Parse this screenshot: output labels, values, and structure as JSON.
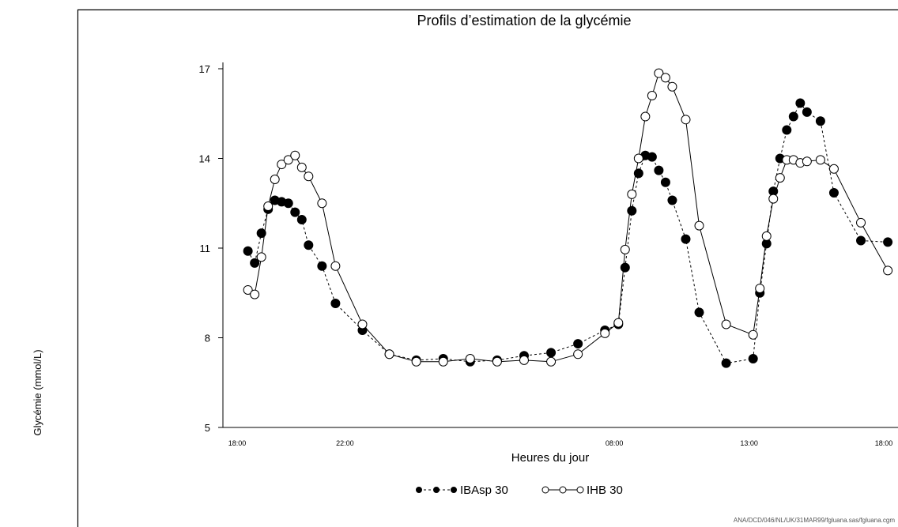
{
  "chart_data": {
    "type": "line",
    "title": "Profils d’estimation de la glycémie",
    "xlabel": "Heures du jour",
    "ylabel": "Glycémie (mmol/L)",
    "x_unit": "hours (clock time, 18:00 to 18:00 next day)",
    "xlim": [
      18,
      42
    ],
    "ylim": [
      5,
      17
    ],
    "x_ticks": [
      {
        "value": 18,
        "label": "18:00"
      },
      {
        "value": 22,
        "label": "22:00"
      },
      {
        "value": 32,
        "label": "08:00"
      },
      {
        "value": 37,
        "label": "13:00"
      },
      {
        "value": 42,
        "label": "18:00"
      }
    ],
    "y_ticks": [
      {
        "value": 5,
        "label": "5"
      },
      {
        "value": 8,
        "label": "8"
      },
      {
        "value": 11,
        "label": "11"
      },
      {
        "value": 14,
        "label": "14"
      },
      {
        "value": 17,
        "label": "17"
      }
    ],
    "grid": false,
    "legend_position": "bottom",
    "footnote": "ANA/DCD/046/NL/UK/31MAR99/fgluana.sas/fgluana.cgm",
    "series": [
      {
        "name": "IBAsp 30",
        "marker": "filled-circle",
        "line_style": "dashed",
        "color": "#000000",
        "x": [
          18.4,
          18.65,
          18.9,
          19.15,
          19.4,
          19.65,
          19.9,
          20.15,
          20.4,
          20.65,
          21.15,
          21.65,
          22.65,
          23.65,
          24.65,
          25.65,
          26.65,
          27.65,
          28.65,
          29.65,
          30.65,
          31.65,
          32.15,
          32.4,
          32.65,
          32.9,
          33.15,
          33.4,
          33.65,
          33.9,
          34.15,
          34.65,
          35.15,
          36.15,
          37.15,
          37.4,
          37.65,
          37.9,
          38.15,
          38.4,
          38.65,
          38.9,
          39.15,
          39.65,
          40.15,
          41.15,
          42.15
        ],
        "y": [
          10.9,
          10.5,
          11.5,
          12.3,
          12.6,
          12.55,
          12.5,
          12.2,
          11.95,
          11.1,
          10.4,
          9.15,
          8.25,
          7.45,
          7.25,
          7.3,
          7.2,
          7.25,
          7.4,
          7.5,
          7.8,
          8.25,
          8.45,
          10.35,
          12.25,
          13.5,
          14.1,
          14.05,
          13.6,
          13.2,
          12.6,
          11.3,
          8.85,
          7.15,
          7.3,
          9.5,
          11.15,
          12.9,
          14.0,
          14.95,
          15.4,
          15.85,
          15.55,
          15.25,
          12.85,
          11.25,
          11.2
        ]
      },
      {
        "name": "IHB 30",
        "marker": "open-circle",
        "line_style": "solid",
        "color": "#000000",
        "x": [
          18.4,
          18.65,
          18.9,
          19.15,
          19.4,
          19.65,
          19.9,
          20.15,
          20.4,
          20.65,
          21.15,
          21.65,
          22.65,
          23.65,
          24.65,
          25.65,
          26.65,
          27.65,
          28.65,
          29.65,
          30.65,
          31.65,
          32.15,
          32.4,
          32.65,
          32.9,
          33.15,
          33.4,
          33.65,
          33.9,
          34.15,
          34.65,
          35.15,
          36.15,
          37.15,
          37.4,
          37.65,
          37.9,
          38.15,
          38.4,
          38.65,
          38.9,
          39.15,
          39.65,
          40.15,
          41.15,
          42.15
        ],
        "y": [
          9.6,
          9.45,
          10.7,
          12.4,
          13.3,
          13.8,
          13.95,
          14.1,
          13.7,
          13.4,
          12.5,
          10.4,
          8.45,
          7.45,
          7.2,
          7.2,
          7.3,
          7.2,
          7.25,
          7.2,
          7.45,
          8.15,
          8.5,
          10.95,
          12.8,
          14.0,
          15.4,
          16.1,
          16.85,
          16.7,
          16.4,
          15.3,
          11.75,
          8.45,
          8.1,
          9.65,
          11.4,
          12.65,
          13.35,
          13.95,
          13.95,
          13.85,
          13.9,
          13.95,
          13.65,
          11.85,
          10.25
        ]
      }
    ]
  }
}
